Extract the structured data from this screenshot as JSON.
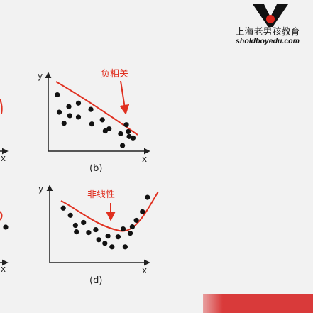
{
  "logo": {
    "brand_text": "上海老男孩教育",
    "url_text": "sholdboyedu.com",
    "accent_color": "#d9261c",
    "dark_color": "#111111"
  },
  "plots": [
    {
      "id": "b",
      "caption": "(b)",
      "x_label": "x",
      "y_label": "y",
      "annotation": "负相关",
      "points": [
        [
          0.08,
          0.78
        ],
        [
          0.1,
          0.53
        ],
        [
          0.2,
          0.61
        ],
        [
          0.3,
          0.66
        ],
        [
          0.21,
          0.48
        ],
        [
          0.15,
          0.37
        ],
        [
          0.3,
          0.46
        ],
        [
          0.43,
          0.57
        ],
        [
          0.44,
          0.36
        ],
        [
          0.55,
          0.42
        ],
        [
          0.58,
          0.26
        ],
        [
          0.62,
          0.29
        ],
        [
          0.74,
          0.22
        ],
        [
          0.8,
          0.35
        ],
        [
          0.83,
          0.18
        ],
        [
          0.87,
          0.16
        ],
        [
          0.76,
          0.05
        ],
        [
          0.82,
          0.25
        ]
      ],
      "fit": "negative-linear"
    },
    {
      "id": "d",
      "caption": "(d)",
      "x_label": "x",
      "y_label": "y",
      "annotation": "非线性",
      "points": [
        [
          0.12,
          0.72
        ],
        [
          0.19,
          0.62
        ],
        [
          0.24,
          0.48
        ],
        [
          0.25,
          0.39
        ],
        [
          0.32,
          0.52
        ],
        [
          0.37,
          0.38
        ],
        [
          0.44,
          0.42
        ],
        [
          0.47,
          0.28
        ],
        [
          0.53,
          0.23
        ],
        [
          0.56,
          0.33
        ],
        [
          0.66,
          0.32
        ],
        [
          0.71,
          0.43
        ],
        [
          0.78,
          0.37
        ],
        [
          0.8,
          0.46
        ],
        [
          0.84,
          0.55
        ],
        [
          0.9,
          0.67
        ],
        [
          0.95,
          0.87
        ],
        [
          0.6,
          0.18
        ],
        [
          0.73,
          0.18
        ]
      ],
      "fit": "u-curve"
    }
  ],
  "partial_left": {
    "x_label_top": "x",
    "x_label_bottom": "x"
  },
  "colors": {
    "curve": "#e03020",
    "points": "#111111",
    "axis": "#222222",
    "bar": "#d93a3a"
  }
}
